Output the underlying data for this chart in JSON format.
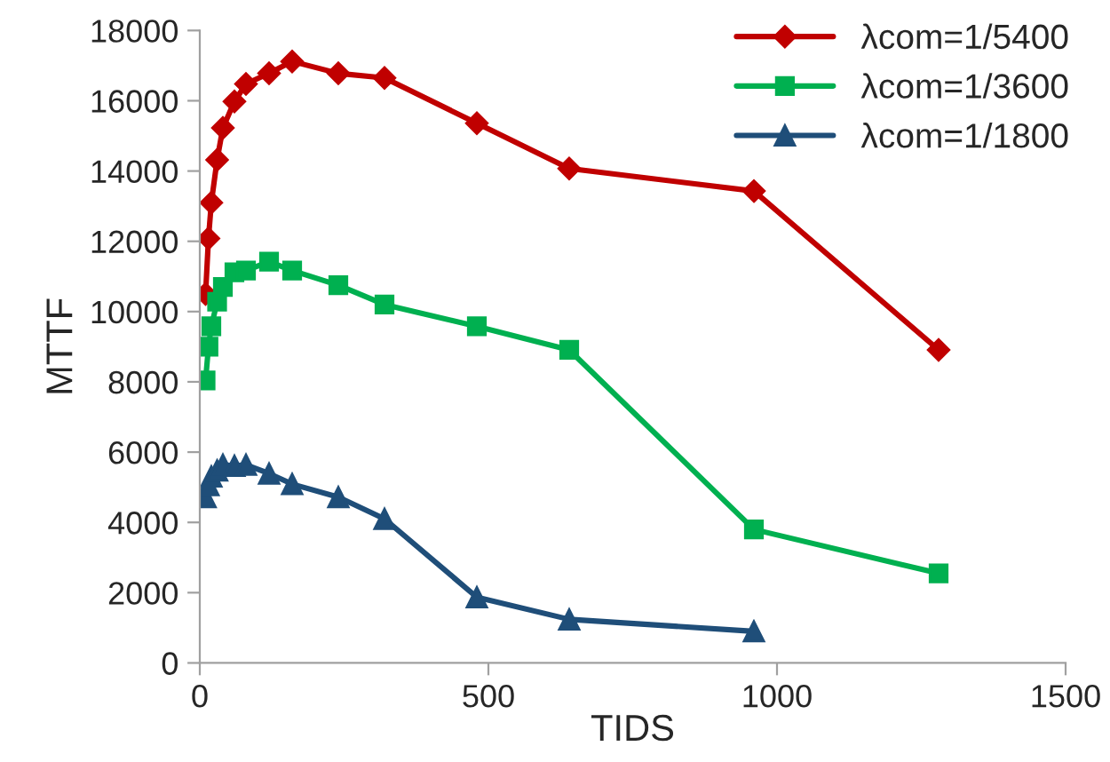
{
  "chart_data": {
    "type": "line",
    "xlabel": "TIDS",
    "ylabel": "MTTF",
    "x": [
      10,
      15,
      20,
      30,
      40,
      60,
      80,
      120,
      160,
      240,
      320,
      480,
      640,
      960,
      1280
    ],
    "xlim": [
      0,
      1500
    ],
    "xticks": [
      0,
      500,
      1000,
      1500
    ],
    "ylim": [
      0,
      18000
    ],
    "yticks": [
      0,
      2000,
      4000,
      6000,
      8000,
      10000,
      12000,
      14000,
      16000,
      18000
    ],
    "grid": false,
    "legend": "top right",
    "line_style": "solid",
    "series": [
      {
        "name": "λcom=1/5400",
        "color": "#c00000",
        "marker": "diamond",
        "values": [
          10500,
          12080,
          13100,
          14320,
          15230,
          15980,
          16480,
          16780,
          17120,
          16780,
          16650,
          15360,
          14070,
          13430,
          8910
        ]
      },
      {
        "name": "λcom=1/3600",
        "color": "#00b050",
        "marker": "square",
        "values": [
          8040,
          9000,
          9580,
          10280,
          10700,
          11120,
          11170,
          11420,
          11170,
          10750,
          10200,
          9580,
          8910,
          3800,
          2550
        ]
      },
      {
        "name": "λcom=1/1800",
        "color": "#1f4e79",
        "marker": "triangle",
        "values": [
          4720,
          5060,
          5310,
          5480,
          5640,
          5610,
          5640,
          5390,
          5090,
          4720,
          4100,
          1870,
          1240,
          900,
          null
        ]
      }
    ]
  }
}
